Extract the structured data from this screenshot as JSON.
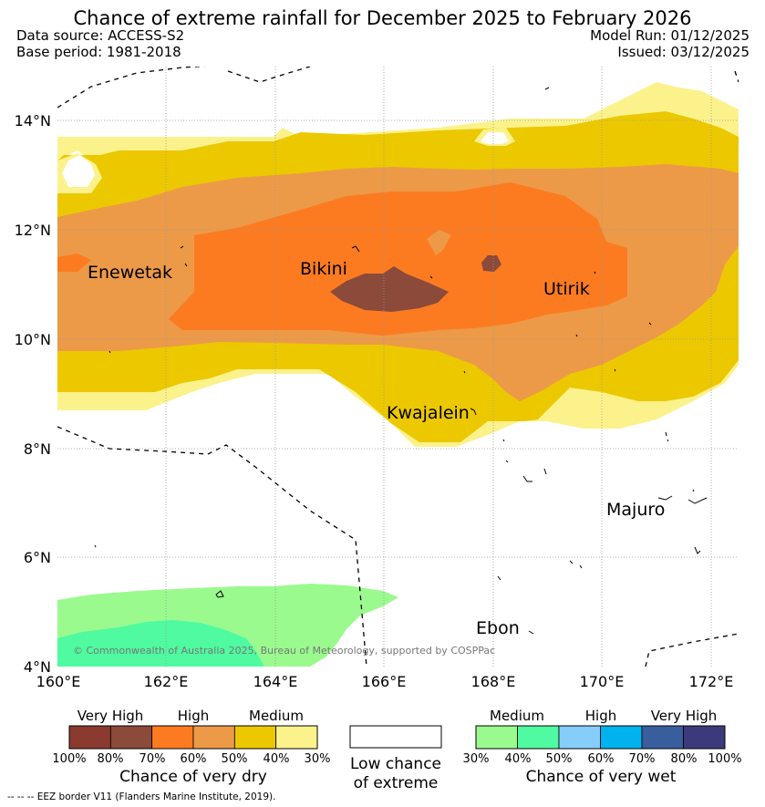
{
  "title": "Chance of extreme rainfall for December 2025 to February 2026",
  "meta": {
    "data_source": "Data source: ACCESS-S2",
    "base_period": "Base period: 1981-2018",
    "model_run": "Model Run: 01/12/2025",
    "issued": "Issued: 03/12/2025"
  },
  "map": {
    "lat_labels": [
      "14°N",
      "12°N",
      "10°N",
      "8°N",
      "6°N",
      "4°N"
    ],
    "lon_labels": [
      "160°E",
      "162°E",
      "164°E",
      "166°E",
      "168°E",
      "170°E",
      "172°E"
    ],
    "places": [
      "Enewetak",
      "Bikini",
      "Utirik",
      "Kwajalein",
      "Majuro",
      "Ebon"
    ],
    "copyright": "© Commonwealth of Australia 2025, Bureau of Meteorology, supported by COSPPac"
  },
  "legend": {
    "dry": {
      "group_labels": [
        "Very High",
        "High",
        "Medium"
      ],
      "colors": [
        "#8b3a2f",
        "#8b4a3a",
        "#fc7b21",
        "#ec9a48",
        "#ecc800",
        "#fcf28c"
      ],
      "tick_labels": [
        "100%",
        "80%",
        "70%",
        "60%",
        "50%",
        "40%",
        "30%"
      ],
      "title": "Chance of very dry"
    },
    "low": {
      "line1": "Low chance",
      "line2": "of extreme"
    },
    "wet": {
      "group_labels": [
        "Medium",
        "High",
        "Very High"
      ],
      "colors": [
        "#9afa8e",
        "#4ffaa0",
        "#86cdfa",
        "#00b2ee",
        "#385e9e",
        "#3b3a7a"
      ],
      "tick_labels": [
        "30%",
        "40%",
        "50%",
        "60%",
        "70%",
        "80%",
        "100%"
      ],
      "title": "Chance of very wet"
    }
  },
  "footnote": "-- -- -- EEZ border V11 (Flanders Marine Institute, 2019)."
}
